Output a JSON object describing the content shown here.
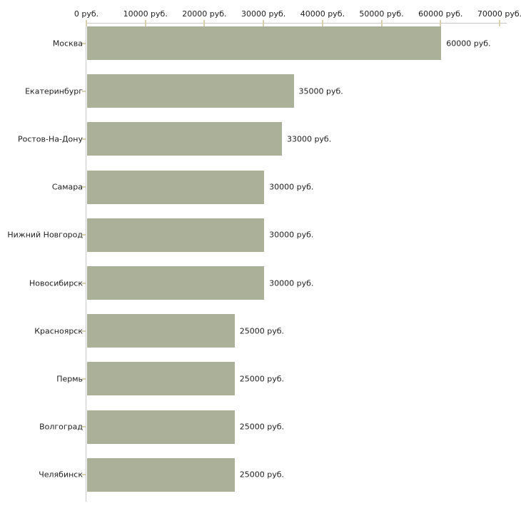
{
  "chart_data": {
    "type": "bar",
    "orientation": "horizontal",
    "title": "",
    "xlabel": "",
    "ylabel": "",
    "unit": "руб.",
    "categories": [
      "Москва",
      "Екатеринбург",
      "Ростов-На-Дону",
      "Самара",
      "Нижний Новгород",
      "Новосибирск",
      "Красноярск",
      "Пермь",
      "Волгоград",
      "Челябинск"
    ],
    "values": [
      60000,
      35000,
      33000,
      30000,
      30000,
      30000,
      25000,
      25000,
      25000,
      25000
    ],
    "value_labels": [
      "60000 руб.",
      "35000 руб.",
      "33000 руб.",
      "30000 руб.",
      "30000 руб.",
      "30000 руб.",
      "25000 руб.",
      "25000 руб.",
      "25000 руб.",
      "25000 руб."
    ],
    "x_axis": {
      "position": "top",
      "range": [
        0,
        70000
      ],
      "ticks": [
        0,
        10000,
        20000,
        30000,
        40000,
        50000,
        60000,
        70000
      ],
      "tick_labels": [
        "0 руб.",
        "10000 руб.",
        "20000 руб.",
        "30000 руб.",
        "40000 руб.",
        "50000 руб.",
        "60000 руб.",
        "70000 руб."
      ]
    },
    "grid": false,
    "legend": false,
    "colors": {
      "bar": "#abb199",
      "axis_line": "#c9c9c9",
      "tick_mark": "#d6d2ad",
      "text": "#1f1f1f",
      "background": "#ffffff"
    }
  }
}
